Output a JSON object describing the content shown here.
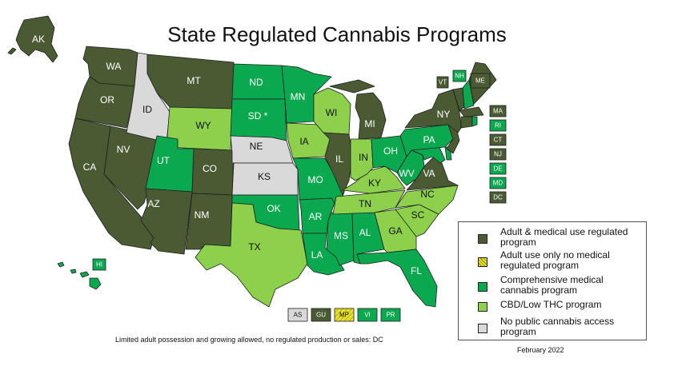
{
  "title": "State Regulated Cannabis Programs",
  "colors": {
    "adult": "#4a5a33",
    "adult_only": "#e6e12a",
    "medical": "#0aa84f",
    "cbd": "#8cd04c",
    "none": "#d9d9d9"
  },
  "categories": {
    "adult": "Adult & medical use regulated program",
    "adult_only": "Adult use only no medical regulated program",
    "medical": "Comprehensive medical cannabis program",
    "cbd": "CBD/Low THC program",
    "none": "No public cannabis access program"
  },
  "states": [
    {
      "code": "AK",
      "cat": "adult"
    },
    {
      "code": "HI",
      "cat": "medical"
    },
    {
      "code": "WA",
      "cat": "adult"
    },
    {
      "code": "OR",
      "cat": "adult"
    },
    {
      "code": "CA",
      "cat": "adult"
    },
    {
      "code": "NV",
      "cat": "adult"
    },
    {
      "code": "ID",
      "cat": "none"
    },
    {
      "code": "MT",
      "cat": "adult"
    },
    {
      "code": "WY",
      "cat": "cbd"
    },
    {
      "code": "UT",
      "cat": "medical"
    },
    {
      "code": "AZ",
      "cat": "adult"
    },
    {
      "code": "CO",
      "cat": "adult"
    },
    {
      "code": "NM",
      "cat": "adult"
    },
    {
      "code": "ND",
      "cat": "medical"
    },
    {
      "code": "SD *",
      "cat": "medical"
    },
    {
      "code": "NE",
      "cat": "none"
    },
    {
      "code": "KS",
      "cat": "none"
    },
    {
      "code": "OK",
      "cat": "medical"
    },
    {
      "code": "TX",
      "cat": "cbd"
    },
    {
      "code": "MN",
      "cat": "medical"
    },
    {
      "code": "IA",
      "cat": "cbd"
    },
    {
      "code": "MO",
      "cat": "medical"
    },
    {
      "code": "AR",
      "cat": "medical"
    },
    {
      "code": "LA",
      "cat": "medical"
    },
    {
      "code": "WI",
      "cat": "cbd"
    },
    {
      "code": "IL",
      "cat": "adult"
    },
    {
      "code": "MS",
      "cat": "medical"
    },
    {
      "code": "MI",
      "cat": "adult"
    },
    {
      "code": "IN",
      "cat": "cbd"
    },
    {
      "code": "KY",
      "cat": "cbd"
    },
    {
      "code": "TN",
      "cat": "cbd"
    },
    {
      "code": "AL",
      "cat": "medical"
    },
    {
      "code": "OH",
      "cat": "medical"
    },
    {
      "code": "GA",
      "cat": "cbd"
    },
    {
      "code": "FL",
      "cat": "medical"
    },
    {
      "code": "SC",
      "cat": "cbd"
    },
    {
      "code": "NC",
      "cat": "cbd"
    },
    {
      "code": "VA",
      "cat": "adult"
    },
    {
      "code": "WV",
      "cat": "medical"
    },
    {
      "code": "PA",
      "cat": "medical"
    },
    {
      "code": "NY",
      "cat": "adult"
    },
    {
      "code": "VT",
      "cat": "adult"
    },
    {
      "code": "NH",
      "cat": "medical"
    },
    {
      "code": "ME",
      "cat": "adult"
    },
    {
      "code": "MA",
      "cat": "adult"
    },
    {
      "code": "RI",
      "cat": "medical"
    },
    {
      "code": "CT",
      "cat": "adult"
    },
    {
      "code": "NJ",
      "cat": "adult"
    },
    {
      "code": "DE",
      "cat": "medical"
    },
    {
      "code": "MD",
      "cat": "medical"
    },
    {
      "code": "DC",
      "cat": "adult"
    }
  ],
  "territories": [
    {
      "code": "AS",
      "cat": "none"
    },
    {
      "code": "GU",
      "cat": "adult"
    },
    {
      "code": "MP",
      "cat": "adult_only"
    },
    {
      "code": "VI",
      "cat": "medical"
    },
    {
      "code": "PR",
      "cat": "medical"
    }
  ],
  "legend": [
    {
      "cat": "adult",
      "label": "Adult & medical use regulated program"
    },
    {
      "cat": "adult_only",
      "label": "Adult use only no medical regulated program"
    },
    {
      "cat": "medical",
      "label": "Comprehensive medical cannabis program"
    },
    {
      "cat": "cbd",
      "label": "CBD/Low THC program"
    },
    {
      "cat": "none",
      "label": "No public cannabis access program"
    }
  ],
  "footnote": "Limited adult possession and growing allowed, no regulated production or sales: DC",
  "date": "February 2022"
}
